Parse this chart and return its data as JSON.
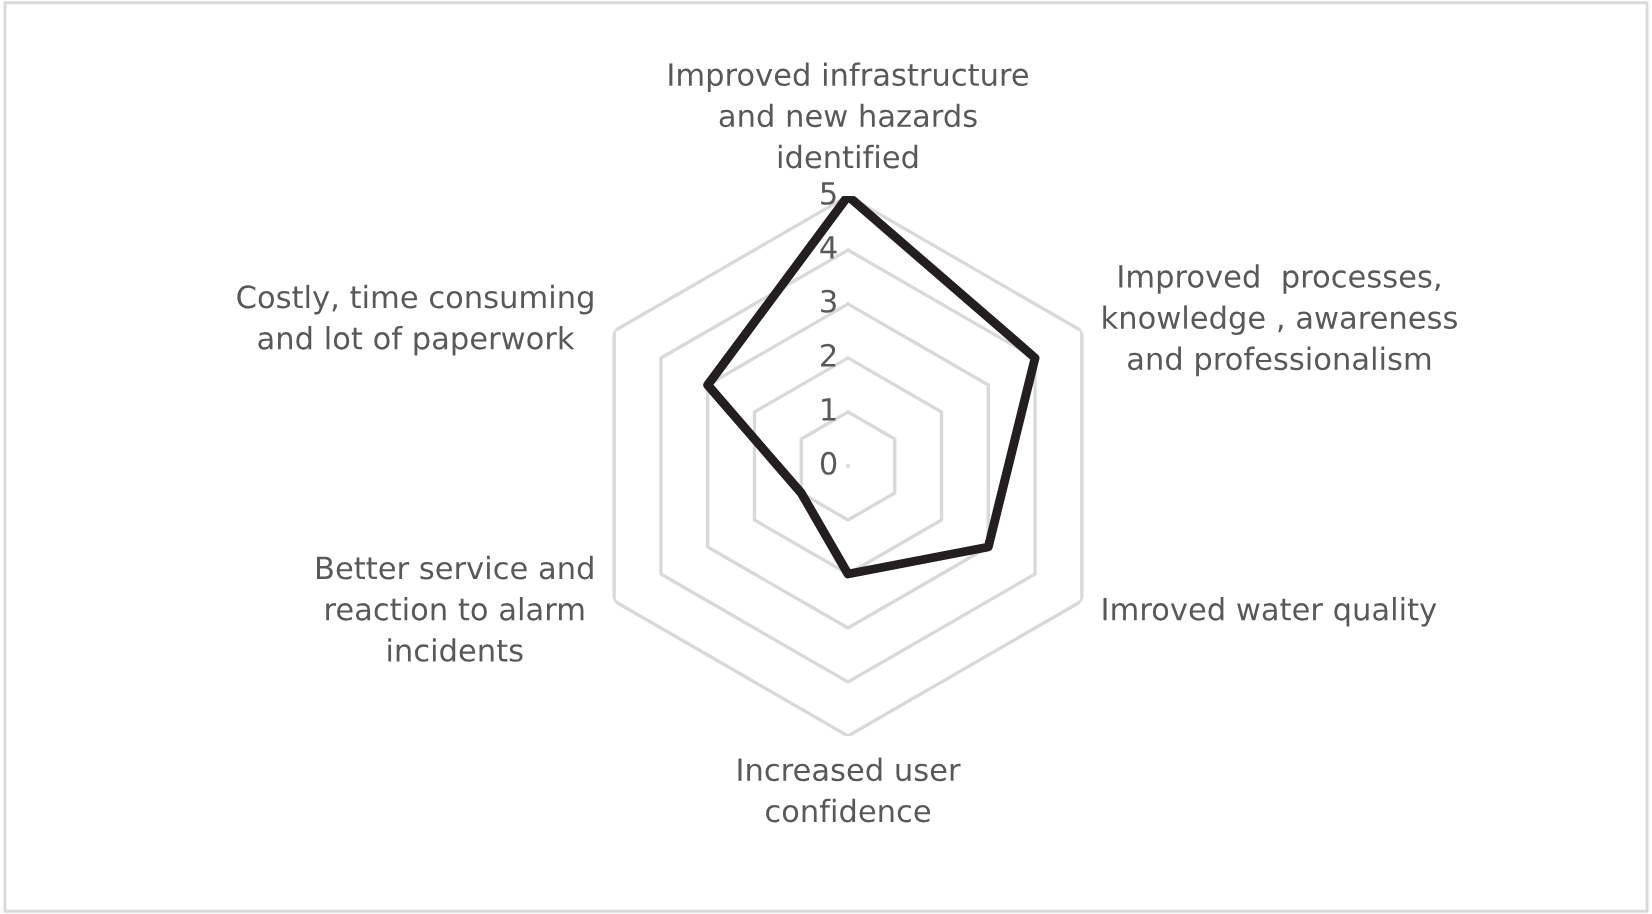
{
  "chart_data": {
    "type": "radar",
    "categories": [
      "Improved infrastructure\nand new hazards\nidentified",
      "Improved  processes,\nknowledge , awareness\nand professionalism",
      "Imroved water quality",
      "Increased user\nconfidence",
      "Better service and\nreaction to alarm\nincidents",
      "Costly, time consuming\nand lot of paperwork"
    ],
    "series": [
      {
        "color": "#231f20",
        "values": [
          5,
          4,
          3,
          2,
          1,
          3
        ]
      }
    ],
    "ylim": [
      0,
      5
    ],
    "yticks": [
      0,
      1,
      2,
      3,
      4,
      5
    ],
    "grid": true,
    "marker": "none",
    "line_style": "solid"
  }
}
